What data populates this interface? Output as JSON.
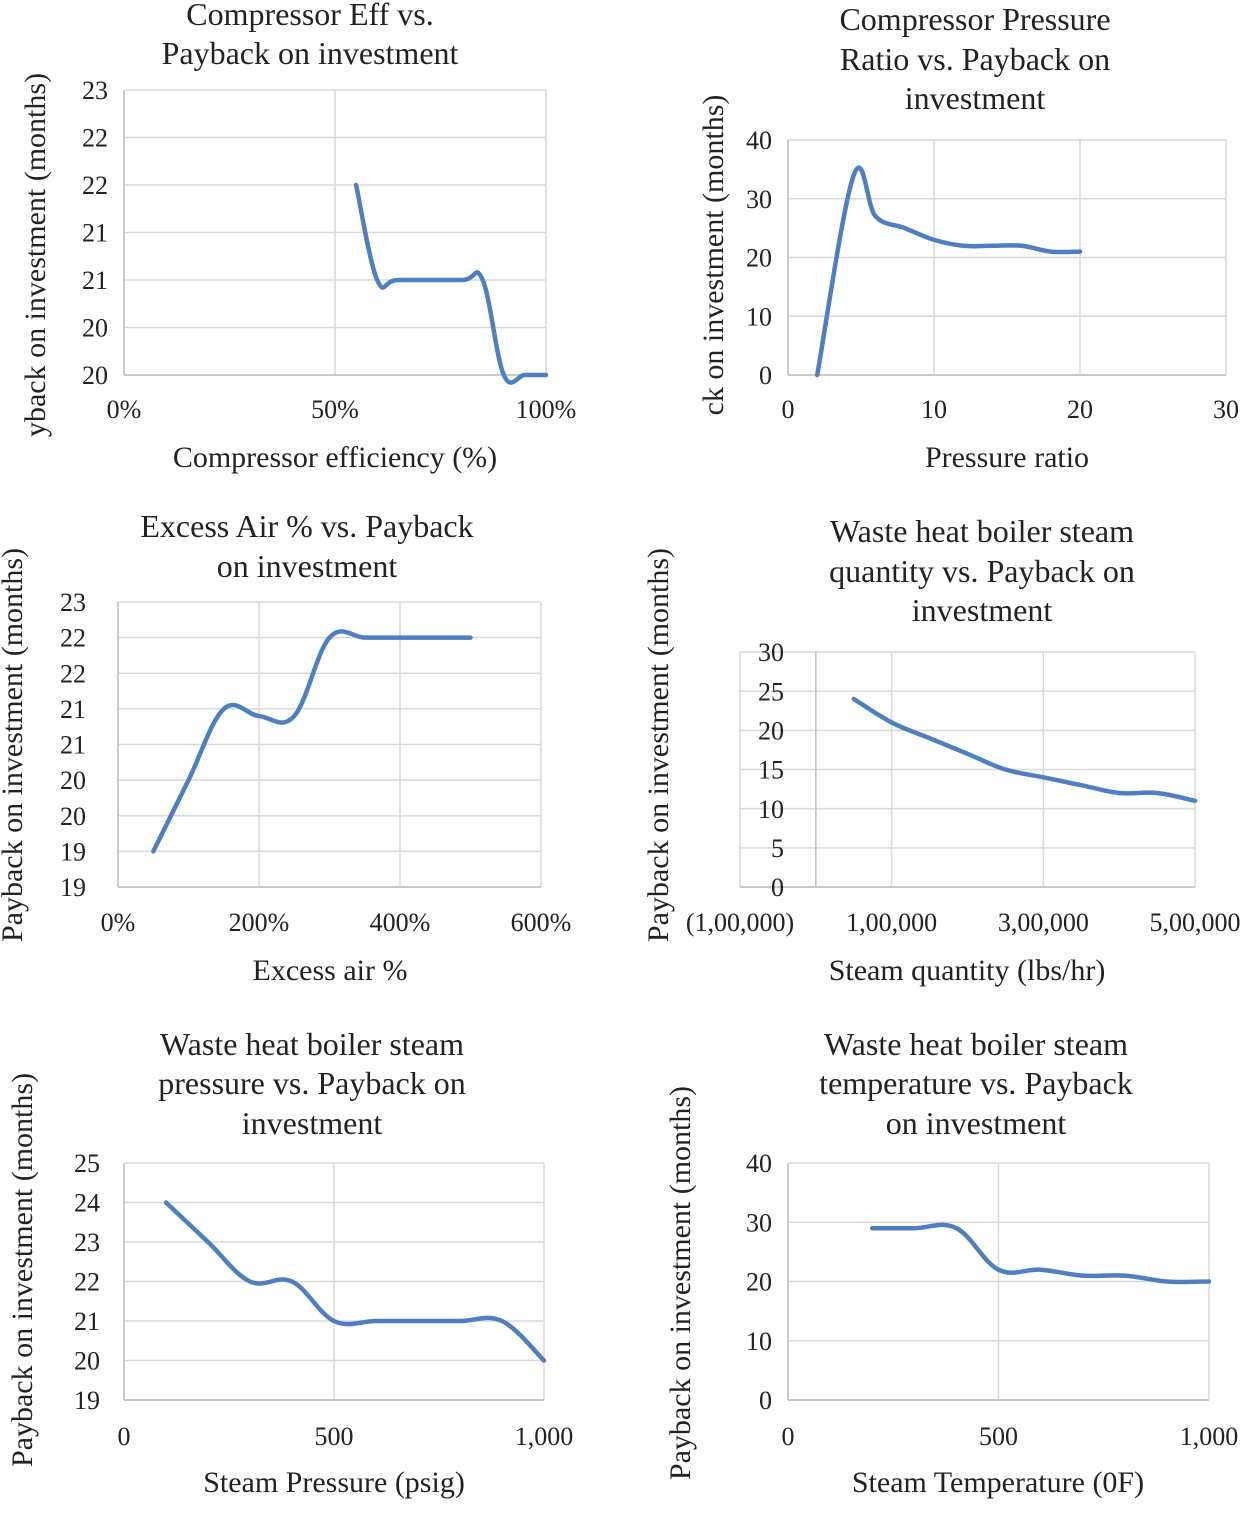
{
  "series_color": "#4e7fc0",
  "chart_data": [
    {
      "type": "line",
      "title": [
        "Compressor Eff vs.",
        "Payback on investment"
      ],
      "xlabel": "Compressor efficiency (%)",
      "ylabel": "yback on investment (months)",
      "xlim": [
        0,
        100
      ],
      "ylim": [
        20,
        23
      ],
      "xticks": [
        0,
        50,
        100
      ],
      "xtick_labels": [
        "0%",
        "50%",
        "100%"
      ],
      "yticks": [
        20,
        20.5,
        21,
        21.5,
        22,
        22.5,
        23
      ],
      "ytick_labels": [
        "20",
        "20",
        "21",
        "21",
        "22",
        "22",
        "23"
      ],
      "x": [
        55,
        60,
        65,
        80,
        85,
        90,
        95,
        100
      ],
      "y": [
        22,
        21,
        21,
        21,
        21,
        20,
        20,
        20
      ]
    },
    {
      "type": "line",
      "title": [
        "Compressor Pressure",
        "Ratio vs. Payback on",
        "investment"
      ],
      "xlabel": "Pressure ratio",
      "ylabel": "ck on investment (months)",
      "xlim": [
        0,
        30
      ],
      "ylim": [
        0,
        40
      ],
      "xticks": [
        0,
        10,
        20,
        30
      ],
      "xtick_labels": [
        "0",
        "10",
        "20",
        "30"
      ],
      "yticks": [
        0,
        10,
        20,
        30,
        40
      ],
      "ytick_labels": [
        "0",
        "10",
        "20",
        "30",
        "40"
      ],
      "x": [
        2,
        4.5,
        6,
        8,
        10,
        12,
        14,
        16,
        18,
        20
      ],
      "y": [
        0,
        34,
        27,
        25,
        23,
        22,
        22,
        22,
        21,
        21
      ]
    },
    {
      "type": "line",
      "title": [
        "Excess Air % vs. Payback",
        "on investment"
      ],
      "xlabel": "Excess air %",
      "ylabel": "Payback on investment (months)",
      "xlim": [
        0,
        600
      ],
      "ylim": [
        19,
        23
      ],
      "xticks": [
        0,
        200,
        400,
        600
      ],
      "xtick_labels": [
        "0%",
        "200%",
        "400%",
        "600%"
      ],
      "yticks": [
        19,
        19.5,
        20,
        20.5,
        21,
        21.5,
        22,
        22.5,
        23
      ],
      "ytick_labels": [
        "19",
        "19",
        "20",
        "20",
        "21",
        "21",
        "22",
        "22",
        "23"
      ],
      "x": [
        50,
        100,
        150,
        200,
        250,
        300,
        350,
        400,
        450,
        500
      ],
      "y": [
        19.5,
        20.5,
        21.5,
        21.4,
        21.4,
        22.5,
        22.5,
        22.5,
        22.5,
        22.5
      ]
    },
    {
      "type": "line",
      "title": [
        "Waste heat boiler steam",
        "quantity vs. Payback on",
        "investment"
      ],
      "xlabel": "Steam quantity (lbs/hr)",
      "ylabel": "Payback on investment (months)",
      "xlim": [
        -100000,
        500000
      ],
      "ylim": [
        0,
        30
      ],
      "xticks": [
        -100000,
        100000,
        300000,
        500000
      ],
      "xtick_labels": [
        "(1,00,000)",
        "1,00,000",
        "3,00,000",
        "5,00,000"
      ],
      "yticks": [
        0,
        5,
        10,
        15,
        20,
        25,
        30
      ],
      "ytick_labels": [
        "0",
        "5",
        "10",
        "15",
        "20",
        "25",
        "30"
      ],
      "x": [
        50000,
        100000,
        150000,
        200000,
        250000,
        300000,
        350000,
        400000,
        450000,
        500000
      ],
      "y": [
        24,
        21,
        19,
        17,
        15,
        14,
        13,
        12,
        12,
        11
      ]
    },
    {
      "type": "line",
      "title": [
        "Waste heat boiler steam",
        "pressure vs. Payback on",
        "investment"
      ],
      "xlabel": "Steam Pressure (psig)",
      "ylabel": "Payback on investment (months)",
      "xlim": [
        0,
        1000
      ],
      "ylim": [
        19,
        25
      ],
      "xticks": [
        0,
        500,
        1000
      ],
      "xtick_labels": [
        "0",
        "500",
        "1,000"
      ],
      "yticks": [
        19,
        20,
        21,
        22,
        23,
        24,
        25
      ],
      "ytick_labels": [
        "19",
        "20",
        "21",
        "22",
        "23",
        "24",
        "25"
      ],
      "x": [
        100,
        200,
        300,
        400,
        500,
        600,
        700,
        800,
        900,
        1000
      ],
      "y": [
        24,
        23,
        22,
        22,
        21,
        21,
        21,
        21,
        21,
        20
      ]
    },
    {
      "type": "line",
      "title": [
        "Waste heat boiler steam",
        "temperature vs. Payback",
        "on investment"
      ],
      "xlabel": "Steam Temperature (0F)",
      "ylabel": "Payback on investment (months)",
      "xlim": [
        0,
        1000
      ],
      "ylim": [
        0,
        40
      ],
      "xticks": [
        0,
        500,
        1000
      ],
      "xtick_labels": [
        "0",
        "500",
        "1,000"
      ],
      "yticks": [
        0,
        10,
        20,
        30,
        40
      ],
      "ytick_labels": [
        "0",
        "10",
        "20",
        "30",
        "40"
      ],
      "x": [
        200,
        300,
        400,
        500,
        600,
        700,
        800,
        900,
        1000
      ],
      "y": [
        29,
        29,
        29,
        22,
        22,
        21,
        21,
        20,
        20
      ]
    }
  ]
}
